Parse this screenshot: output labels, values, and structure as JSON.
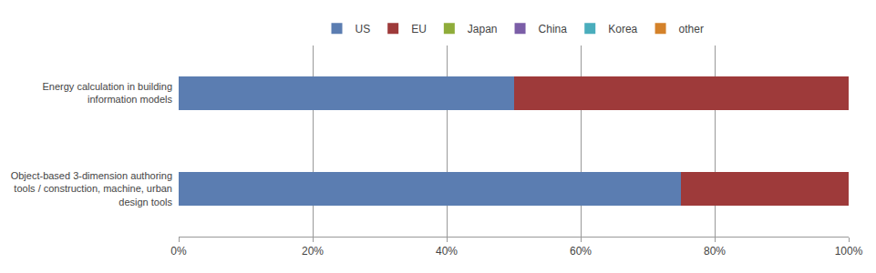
{
  "chart_data": {
    "type": "bar",
    "orientation": "horizontal",
    "stacked": true,
    "categories": [
      "Energy calculation in building\ninformation models",
      "Object-based 3-dimension authoring\ntools / construction, machine, urban\ndesign tools"
    ],
    "series": [
      {
        "name": "US",
        "color": "#5b7db1",
        "values": [
          50,
          75
        ]
      },
      {
        "name": "EU",
        "color": "#9e3a3a",
        "values": [
          50,
          25
        ]
      },
      {
        "name": "Japan",
        "color": "#8fac3a",
        "values": [
          0,
          0
        ]
      },
      {
        "name": "China",
        "color": "#7b5ea7",
        "values": [
          0,
          0
        ]
      },
      {
        "name": "Korea",
        "color": "#4aadbc",
        "values": [
          0,
          0
        ]
      },
      {
        "name": "other",
        "color": "#d4822a",
        "values": [
          0,
          0
        ]
      }
    ],
    "xlim": [
      0,
      100
    ],
    "xticks": [
      {
        "value": 0,
        "label": "0%"
      },
      {
        "value": 20,
        "label": "20%"
      },
      {
        "value": 40,
        "label": "40%"
      },
      {
        "value": 60,
        "label": "60%"
      },
      {
        "value": 80,
        "label": "80%"
      },
      {
        "value": 100,
        "label": "100%"
      }
    ],
    "grid": "x",
    "legend": "top"
  }
}
